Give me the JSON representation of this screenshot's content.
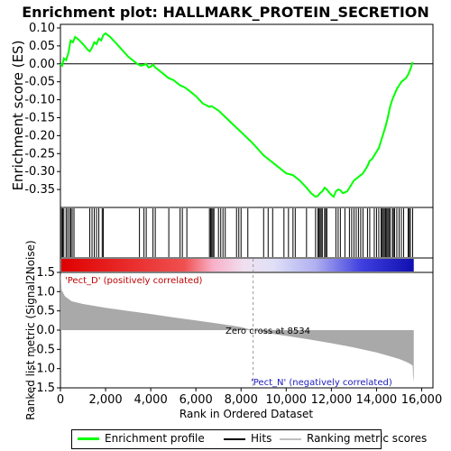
{
  "chart_data": {
    "type": "line",
    "title": "Enrichment plot: HALLMARK_PROTEIN_SECRETION",
    "ylabel_top": "Enrichment score (ES)",
    "ylabel_bottom": "Ranked list metric (Signal2Noise)",
    "xlabel": "Rank in Ordered Dataset",
    "xlim": [
      0,
      16500
    ],
    "xticks": [
      0,
      2000,
      4000,
      6000,
      8000,
      10000,
      12000,
      14000,
      16000
    ],
    "xtick_labels": [
      "0",
      "2,000",
      "4,000",
      "6,000",
      "8,000",
      "10,000",
      "12,000",
      "14,000",
      "16,000"
    ],
    "es_ylim": [
      -0.4,
      0.11
    ],
    "es_yticks": [
      0.1,
      0.05,
      0.0,
      -0.05,
      -0.1,
      -0.15,
      -0.2,
      -0.25,
      -0.3,
      -0.35
    ],
    "es_ytick_labels": [
      "0.10",
      "0.05",
      "0.00",
      "-0.05",
      "-0.10",
      "-0.15",
      "-0.20",
      "-0.25",
      "-0.30",
      "-0.35"
    ],
    "metric_ylim": [
      -1.5,
      1.5
    ],
    "metric_yticks": [
      1.5,
      1.0,
      0.5,
      0.0,
      -0.5,
      -1.0,
      -1.5
    ],
    "metric_ytick_labels": [
      "1.5",
      "1.0",
      "0.5",
      "0.0",
      "-0.5",
      "-1.0",
      "-1.5"
    ],
    "series": [
      {
        "name": "Enrichment profile",
        "color": "#00ff00",
        "x": [
          0,
          80,
          150,
          250,
          350,
          450,
          550,
          650,
          800,
          1000,
          1200,
          1300,
          1400,
          1500,
          1600,
          1700,
          1800,
          1900,
          2000,
          2200,
          2500,
          3000,
          3400,
          3550,
          3700,
          3800,
          3900,
          4000,
          4100,
          4200,
          4400,
          4800,
          5000,
          5200,
          5300,
          5500,
          5700,
          6000,
          6300,
          6600,
          6700,
          6800,
          7000,
          7500,
          8000,
          8500,
          9000,
          9500,
          10000,
          10300,
          10600,
          10900,
          11100,
          11200,
          11300,
          11400,
          11500,
          11600,
          11700,
          11800,
          11900,
          12000,
          12100,
          12200,
          12300,
          12400,
          12500,
          12600,
          12700,
          12800,
          12900,
          13000,
          13100,
          13200,
          13300,
          13400,
          13500,
          13600,
          13700,
          13800,
          13900,
          14000,
          14100,
          14200,
          14300,
          14400,
          14500,
          14600,
          14700,
          14800,
          14900,
          15000,
          15100,
          15200,
          15300,
          15400,
          15500,
          15600
        ],
        "y": [
          0.0,
          -0.005,
          0.015,
          0.01,
          0.03,
          0.065,
          0.06,
          0.075,
          0.068,
          0.055,
          0.04,
          0.035,
          0.045,
          0.06,
          0.055,
          0.07,
          0.065,
          0.08,
          0.085,
          0.075,
          0.055,
          0.02,
          0.0,
          -0.005,
          -0.003,
          0.0,
          -0.01,
          -0.008,
          -0.002,
          -0.01,
          -0.02,
          -0.04,
          -0.045,
          -0.055,
          -0.06,
          -0.065,
          -0.075,
          -0.09,
          -0.11,
          -0.12,
          -0.118,
          -0.122,
          -0.13,
          -0.16,
          -0.19,
          -0.22,
          -0.255,
          -0.28,
          -0.305,
          -0.31,
          -0.325,
          -0.345,
          -0.36,
          -0.365,
          -0.37,
          -0.368,
          -0.36,
          -0.355,
          -0.345,
          -0.35,
          -0.358,
          -0.365,
          -0.37,
          -0.355,
          -0.35,
          -0.352,
          -0.36,
          -0.358,
          -0.355,
          -0.345,
          -0.335,
          -0.325,
          -0.32,
          -0.315,
          -0.31,
          -0.305,
          -0.295,
          -0.285,
          -0.27,
          -0.265,
          -0.255,
          -0.245,
          -0.235,
          -0.215,
          -0.195,
          -0.175,
          -0.15,
          -0.12,
          -0.1,
          -0.085,
          -0.07,
          -0.06,
          -0.05,
          -0.045,
          -0.04,
          -0.03,
          -0.015,
          0.005
        ]
      },
      {
        "name": "Hits",
        "color": "#000000",
        "hits": [
          50,
          100,
          150,
          250,
          320,
          400,
          460,
          520,
          600,
          1300,
          1400,
          1500,
          1600,
          1700,
          1850,
          1900,
          3500,
          3700,
          3800,
          4100,
          4200,
          4800,
          5300,
          5400,
          5600,
          6600,
          6650,
          6700,
          6750,
          6800,
          7000,
          7100,
          7200,
          7300,
          7800,
          7900,
          8000,
          8300,
          9000,
          9200,
          9400,
          9900,
          10100,
          10300,
          10400,
          10900,
          11300,
          11400,
          11450,
          11500,
          11550,
          11600,
          11700,
          11750,
          11800,
          12200,
          12300,
          12400,
          12600,
          12800,
          12900,
          13000,
          13100,
          13200,
          13300,
          13400,
          13600,
          13700,
          13900,
          14000,
          14100,
          14200,
          14250,
          14300,
          14350,
          14400,
          14450,
          14500,
          14550,
          14600,
          14700,
          14750,
          14800,
          14900,
          15000,
          15100,
          15200,
          15400,
          15450,
          15500,
          15600
        ]
      },
      {
        "name": "Ranking metric scores",
        "color": "#c0c0c0",
        "x": [
          0,
          50,
          200,
          500,
          1000,
          2000,
          3000,
          4000,
          5000,
          6000,
          7000,
          8000,
          8534,
          9000,
          10000,
          11000,
          12000,
          13000,
          14000,
          14500,
          15000,
          15300,
          15500,
          15600,
          15620,
          15650
        ],
        "y": [
          1.55,
          1.05,
          0.88,
          0.75,
          0.68,
          0.58,
          0.5,
          0.42,
          0.33,
          0.25,
          0.17,
          0.08,
          0.0,
          -0.06,
          -0.15,
          -0.24,
          -0.34,
          -0.45,
          -0.58,
          -0.66,
          -0.75,
          -0.82,
          -0.88,
          -0.92,
          -1.2,
          -1.35
        ]
      }
    ],
    "annotations": {
      "pos_label": "'Pect_D' (positively correlated)",
      "neg_label": "'Pect_N' (negatively correlated)",
      "zero_cross": "Zero cross at 8534",
      "zero_cross_x": 8534
    },
    "legend": {
      "placement": "bottom",
      "items": [
        "Enrichment profile",
        "Hits",
        "Ranking metric scores"
      ]
    }
  }
}
